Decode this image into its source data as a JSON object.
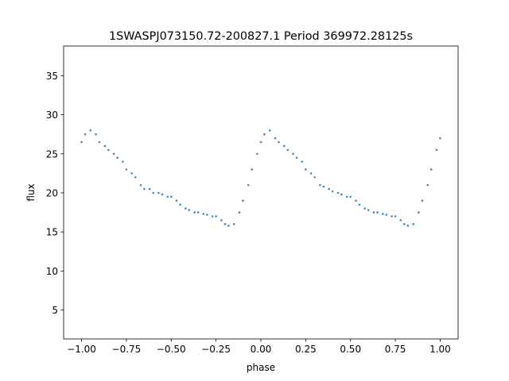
{
  "chart_data": {
    "type": "scatter",
    "title": "1SWASPJ073150.72-200827.1 Period 369972.28125s",
    "xlabel": "phase",
    "ylabel": "flux",
    "xlim": [
      -1.1,
      1.1
    ],
    "ylim": [
      1.3,
      38.8
    ],
    "xticks": [
      -1.0,
      -0.75,
      -0.5,
      -0.25,
      0.0,
      0.25,
      0.5,
      0.75,
      1.0
    ],
    "xtick_labels": [
      "−1.00",
      "−0.75",
      "−0.50",
      "−0.25",
      "0.00",
      "0.25",
      "0.50",
      "0.75",
      "1.00"
    ],
    "yticks": [
      5,
      10,
      15,
      20,
      25,
      30,
      35
    ],
    "ytick_labels": [
      "5",
      "10",
      "15",
      "20",
      "25",
      "30",
      "35"
    ],
    "grid": false,
    "marker_color": "#1f77b4",
    "series": [
      {
        "x": [
          -1.0,
          -0.98,
          -0.95,
          -0.92,
          -0.9,
          -0.87,
          -0.85,
          -0.82,
          -0.8,
          -0.77,
          -0.75,
          -0.72,
          -0.7,
          -0.67,
          -0.65,
          -0.62,
          -0.6,
          -0.57,
          -0.55,
          -0.52,
          -0.5,
          -0.47,
          -0.45,
          -0.42,
          -0.4,
          -0.37,
          -0.35,
          -0.32,
          -0.3,
          -0.27,
          -0.25,
          -0.22,
          -0.2,
          -0.18,
          -0.15,
          -0.12,
          -0.1,
          -0.07,
          -0.05,
          -0.02,
          0.0,
          0.02,
          0.05,
          0.08,
          0.1,
          0.13,
          0.15,
          0.18,
          0.2,
          0.23,
          0.25,
          0.28,
          0.3,
          0.33,
          0.35,
          0.38,
          0.4,
          0.43,
          0.45,
          0.48,
          0.5,
          0.53,
          0.55,
          0.58,
          0.6,
          0.63,
          0.65,
          0.68,
          0.7,
          0.73,
          0.75,
          0.78,
          0.8,
          0.82,
          0.85,
          0.88,
          0.9,
          0.93,
          0.95,
          0.98,
          1.0
        ],
        "y": [
          26.5,
          27.5,
          28.0,
          27.5,
          26.5,
          26.0,
          25.5,
          25.0,
          24.5,
          24.0,
          23.0,
          22.5,
          22.0,
          21.0,
          20.5,
          20.5,
          20.0,
          20.0,
          19.8,
          19.5,
          19.5,
          19.0,
          18.5,
          18.0,
          17.8,
          17.5,
          17.5,
          17.3,
          17.2,
          17.0,
          17.0,
          16.5,
          16.0,
          15.8,
          16.0,
          17.5,
          19.0,
          21.0,
          23.0,
          25.0,
          26.5,
          27.5,
          28.0,
          27.0,
          26.5,
          26.0,
          25.5,
          25.0,
          24.5,
          24.0,
          23.0,
          22.5,
          22.0,
          21.0,
          20.8,
          20.5,
          20.2,
          20.0,
          19.8,
          19.5,
          19.5,
          19.0,
          18.5,
          18.0,
          17.8,
          17.5,
          17.5,
          17.3,
          17.2,
          17.0,
          17.0,
          16.5,
          16.0,
          15.8,
          16.0,
          17.5,
          19.0,
          21.0,
          23.0,
          25.5,
          27.0
        ]
      }
    ]
  }
}
